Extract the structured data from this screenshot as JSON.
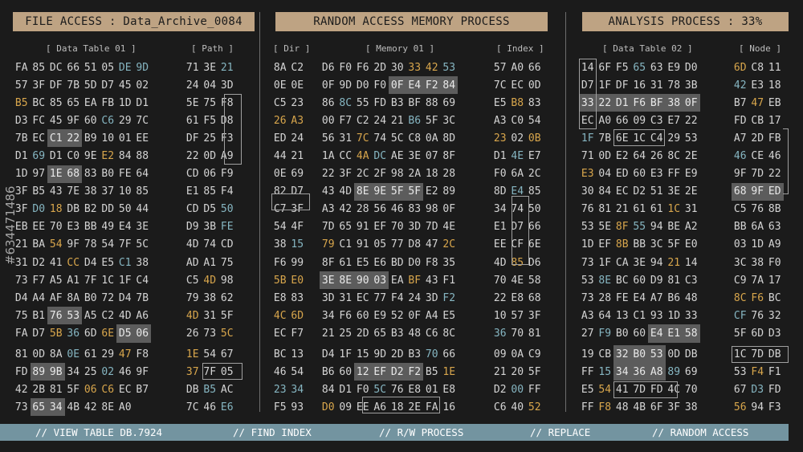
{
  "headers": {
    "file_access": "FILE ACCESS : Data_Archive_0084",
    "ram_process": "RANDOM ACCESS MEMORY PROCESS",
    "analysis": "ANALYSIS PROCESS : 33%"
  },
  "subheaders": {
    "data_table_01": "[ Data Table 01 ]",
    "path": "[ Path ]",
    "dir": "[ Dir ]",
    "memory_01": "[ Memory 01 ]",
    "index": "[ Index ]",
    "data_table_02": "[ Data Table 02 ]",
    "node": "[ Node ]"
  },
  "watermark": "#634471486",
  "bottom_bar": [
    "//  VIEW TABLE DB.7924",
    "//  FIND INDEX",
    "//  R/W PROCESS",
    "//  REPLACE",
    "//  RANDOM ACCESS"
  ],
  "colors": {
    "gold": "#d8a64c",
    "blue": "#86b6c2",
    "header_bg": "#bea383",
    "bar_bg": "#7394a0",
    "highlight": "#5c5c5c"
  },
  "panel1": {
    "main": [
      "FA 85 DC 66 51 05 DE 9D",
      "57 3F DF 7B 5D D7 45 02",
      "B5 BC 85 65 EA FB 1D D1",
      "D3 FC 45 9F 60 C6 29 7C",
      "7B EC C1 22 B9 10 01 EE",
      "D1 69 D1 C0 9E E2 84 88",
      "1D 97 1E 68 83 B0 FE 64",
      "3F B5 43 7E 38 37 10 85",
      "3F D0 18 DB B2 DD 50 44",
      "EB EE 70 E3 BB 49 E4 3E",
      "21 BA 54 9F 78 54 7F 5C",
      "31 D2 41 CC D4 E5 C1 38",
      "73 F7 A5 A1 7F 1C 1F C4",
      "D4 A4 AF 8A B0 72 D4 7B",
      "75 B1 76 53 A5 C2 4D A6",
      "FA D7 5B 36 6D 6E D5 06"
    ],
    "side": [
      "71 3E 21",
      "24 04 3D",
      "5E 75 F8",
      "61 F5 D8",
      "DF 25 F3",
      "22 0D A9",
      "CD 06 F9",
      "E1 85 F4",
      "CD D5 50",
      "D9 3B FE",
      "4D 74 CD",
      "AD A1 75",
      "C5 4D 98",
      "79 38 62",
      "4D 31 5F",
      "26 73 5C"
    ],
    "main_low": [
      "81 0D 8A 0E 61 29 47 F8",
      "FD 89 9B 34 25 02 46",
      "9F 42 2B 81 5F 06 C6 EC",
      "B7 73 65 34 4B 42 8E A0"
    ],
    "side_low": [
      "1E 54 67",
      "37 7F 05",
      "DB B5 AC",
      "7C 46 E6"
    ]
  },
  "panel2": {
    "dir": [
      "8A C2",
      "0E 0E",
      "C5 23",
      "26 A3",
      "ED 24",
      "44 21",
      "0E 69",
      "82 D7",
      "C7 3F",
      "54 4F",
      "38 15",
      "F6 99",
      "5B E0",
      "E8 83",
      "4C 6D",
      "EC F7"
    ],
    "mem": [
      "D6 F0 F6 2D 30 33 42 53",
      "0F 9D D0 F0 0F E4 F2 84",
      "86 8C 55 FD B3 BF 88 69",
      "00 F7 C2 24 21 B6 5F 3C",
      "56 31 7C 74 5C C8 0A 8D",
      "1A CC 4A DC AE 3E 07 8F",
      "22 3F 2C 2F 98 2A 18 28",
      "43 4D 8E 9E 5F 5F E2 89",
      "A3 42 28 56 46 83 98 0F",
      "7D 65 91 EF 70 3D 7D 4E",
      "79 C1 91 05 77 D8 47 2C",
      "8F 61 E5 E6 BD D0 F8 35",
      "3E 8E 90 03 EA BF 43 F1",
      "3D 31 EC 77 F4 24 3D F2",
      "34 F6 60 E9 52 0F A4 E5",
      "21 25 2D 65 B3 48 C6 8C"
    ],
    "idx": [
      "57 A0 66",
      "7C EC 0D",
      "E5 B8 83",
      "A3 C0 54",
      "23 02 0B",
      "D1 4E E7",
      "F0 6A 2C",
      "8D E4 85",
      "34 74 50",
      "E1 D7 66",
      "EE CF 6E",
      "4D 85 D6",
      "70 4E 58",
      "22 E8 68",
      "10 57 3F",
      "36 70 81"
    ],
    "dir_low": [
      "BC 13",
      "46 54",
      "23 34",
      "F5 93"
    ],
    "mem_low": [
      "D4 1F 15 9D 2D B3 70 66",
      "B6 60 12 EF D2 F2 B5 1E",
      "84 D1 F0 5C 76 E8 01 E8",
      "D0 09 EE A6 18 2E FA 16"
    ],
    "idx_low": [
      "09 0A C9",
      "21 20 5F",
      "D2 00 FF",
      "C6 40 52"
    ]
  },
  "panel3": {
    "main": [
      "14 6F F5 65 63 E9 D0",
      "D7 1F DF 16 31 78 3B",
      "33 22 D1 F6 BF 38 0F",
      "EC A0 66 09 C3 E7 22",
      "1F 7B 6E 1C C4 29 53",
      "71 0D E2 64 26 8C 2E",
      "E3 04 ED 60 E3 FF E9",
      "30 84 EC D2 51 3E 2E",
      "76 81 21 61 61 1C 31",
      "53 5E 8F 55 94 BE A2",
      "1D EF 8B BB 3C 5F E0",
      "73 1F CA 3E 94 21 14",
      "53 8E BC 60 D9 81 C3",
      "73 28 FE E4 A7 B6 48",
      "A3 64 13 C1 93 1D 33",
      "27 F9 B0 60 E4 E1 58"
    ],
    "node": [
      "6D C8 11",
      "42 E3 18",
      "B7 47 EB",
      "FD CB 17",
      "A7 2D FB",
      "46 CE 46",
      "9F 7D 22",
      "68 9F ED",
      "C5 76 8B",
      "BB 6A 63",
      "03 1D A9",
      "3C 38 F0",
      "C9 7A 17",
      "8C F6 BC",
      "CF 76 32",
      "5F 6D D3"
    ],
    "main_low": [
      "19 CB 32 B0 53 0D DB",
      "FF 15 34 36 A8 89 69",
      "E5 54 41 7D FD 4C 70",
      "FF F8 48 4B 6F 3F 38"
    ],
    "node_low": [
      "1C 7D DB",
      "53 F4 F1",
      "67 D3 FD",
      "56 94 F3"
    ]
  }
}
